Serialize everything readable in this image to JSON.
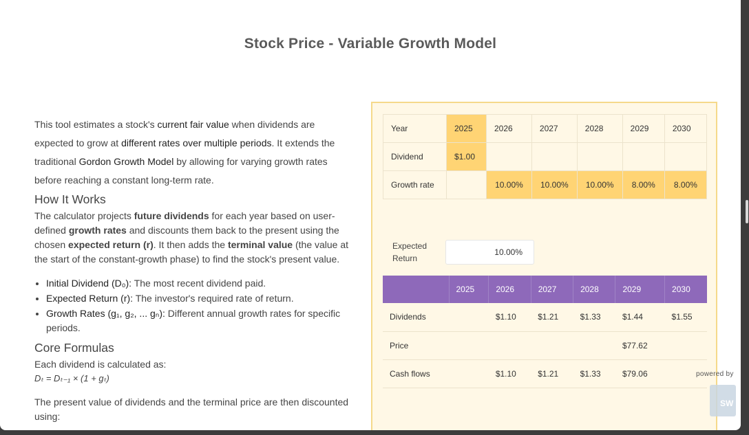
{
  "title": "Stock Price - Variable Growth Model",
  "intro": {
    "t1": "This tool estimates a stock's ",
    "b1": "current fair value",
    "t2": " when dividends are expected to grow at ",
    "b2": "different rates over multiple periods",
    "t3": ". It extends the traditional ",
    "b3": "Gordon Growth Model",
    "t4": " by allowing for varying growth rates before reaching a constant long-term rate."
  },
  "how": {
    "heading": "How It Works",
    "t1": "The calculator projects ",
    "b1": "future dividends",
    "t2": " for each year based on user-defined ",
    "b2": "growth rates",
    "t3": " and discounts them back to the present using the chosen ",
    "b3": "expected return (r)",
    "t4": ". It then adds the ",
    "b4": "terminal value",
    "t5": " (the value at the start of the constant-growth phase) to find the stock's present value."
  },
  "bullets": [
    {
      "term": "Initial Dividend (D₀):",
      "desc": " The most recent dividend paid."
    },
    {
      "term": "Expected Return (r):",
      "desc": " The investor's required rate of return."
    },
    {
      "term": "Growth Rates (g₁, g₂, ... gₙ):",
      "desc": " Different annual growth rates for specific periods."
    }
  ],
  "core": {
    "heading": "Core Formulas",
    "line": "Each dividend is calculated as:",
    "formula": "Dₜ = Dₜ₋₁ × (1 + gₜ)",
    "after": "The present value of dividends and the terminal price are then discounted using:"
  },
  "growth_table": {
    "year_label": "Year",
    "years": [
      "2025",
      "2026",
      "2027",
      "2028",
      "2029",
      "2030"
    ],
    "dividend_label": "Dividend",
    "dividend_2025": "$1.00",
    "growth_label": "Growth rate",
    "growth_rates": [
      "10.00%",
      "10.00%",
      "10.00%",
      "8.00%",
      "8.00%"
    ]
  },
  "expected_return": {
    "label_line1": "Expected",
    "label_line2": "Return",
    "value": "10.00%"
  },
  "results": {
    "years": [
      "2025",
      "2026",
      "2027",
      "2028",
      "2029",
      "2030"
    ],
    "rows": [
      {
        "label": "Dividends",
        "values": [
          "",
          "$1.10",
          "$1.21",
          "$1.33",
          "$1.44",
          "$1.55"
        ]
      },
      {
        "label": "Price",
        "values": [
          "",
          "",
          "",
          "",
          "$77.62",
          ""
        ]
      },
      {
        "label": "Cash flows",
        "values": [
          "",
          "$1.10",
          "$1.21",
          "$1.33",
          "$79.06",
          ""
        ]
      }
    ]
  },
  "powered_by": "powered by",
  "logo_text": "SW",
  "colors": {
    "accent_yellow": "#ffd474",
    "panel_bg": "#fff8e6",
    "header_purple": "#8e69ba"
  }
}
